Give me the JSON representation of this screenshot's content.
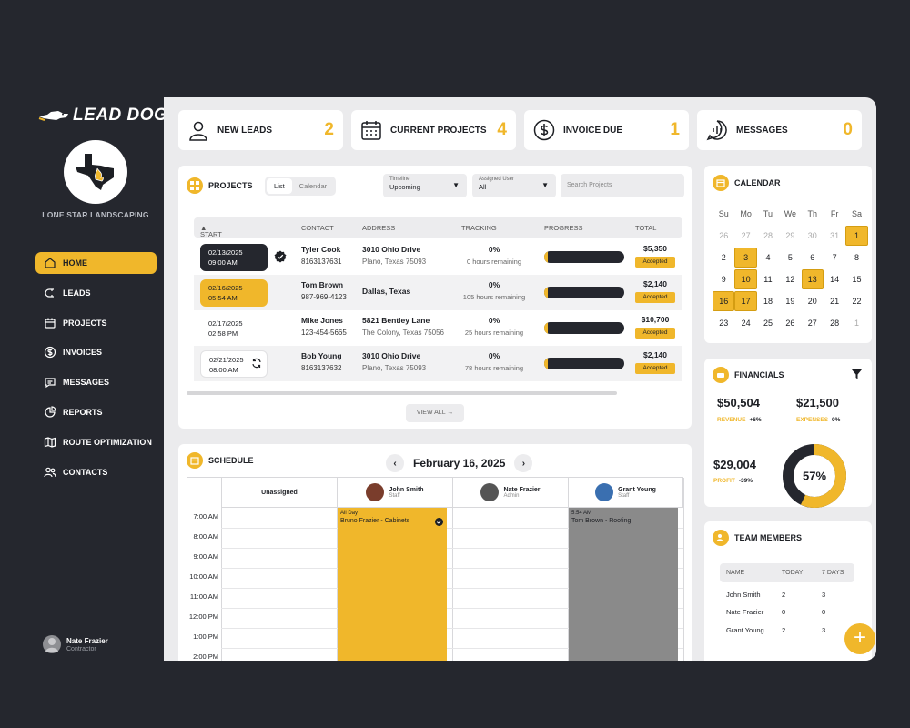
{
  "brand": {
    "logo_text": "LEAD DOG",
    "company": "LONE STAR LANDSCAPING"
  },
  "nav": [
    {
      "label": "HOME",
      "icon": "home-icon",
      "active": true
    },
    {
      "label": "LEADS",
      "icon": "magnet-icon"
    },
    {
      "label": "PROJECTS",
      "icon": "calendar-icon"
    },
    {
      "label": "INVOICES",
      "icon": "dollar-icon"
    },
    {
      "label": "MESSAGES",
      "icon": "chat-icon"
    },
    {
      "label": "REPORTS",
      "icon": "pie-chart-icon"
    },
    {
      "label": "ROUTE OPTIMIZATION",
      "icon": "map-icon"
    },
    {
      "label": "CONTACTS",
      "icon": "users-icon"
    }
  ],
  "user": {
    "name": "Nate Frazier",
    "role": "Contractor"
  },
  "stats": [
    {
      "label": "NEW LEADS",
      "value": "2",
      "icon": "user-icon"
    },
    {
      "label": "CURRENT PROJECTS",
      "value": "4",
      "icon": "calendar-icon"
    },
    {
      "label": "INVOICE DUE",
      "value": "1",
      "icon": "dollar-icon"
    },
    {
      "label": "MESSAGES",
      "value": "0",
      "icon": "chat-icon"
    }
  ],
  "projects": {
    "title": "PROJECTS",
    "toggle": [
      "List",
      "Calendar"
    ],
    "timeline": {
      "label": "Timeline",
      "value": "Upcoming"
    },
    "assigned": {
      "label": "Assigned User",
      "value": "All"
    },
    "search_placeholder": "Search Projects",
    "columns": [
      "START",
      "CONTACT",
      "ADDRESS",
      "TRACKING",
      "PROGRESS",
      "TOTAL"
    ],
    "rows": [
      {
        "date": "02/13/2025",
        "time": "09:00 AM",
        "name": "Tyler Cook",
        "phone": "8163137631",
        "addr1": "3010 Ohio Drive",
        "addr2": "Plano, Texas 75093",
        "pct": "0%",
        "hours": "0 hours remaining",
        "total": "$5,350",
        "status": "Accepted"
      },
      {
        "date": "02/16/2025",
        "time": "05:54 AM",
        "name": "Tom Brown",
        "phone": "987-969-4123",
        "addr1": "Dallas, Texas",
        "addr2": "",
        "pct": "0%",
        "hours": "105 hours remaining",
        "total": "$2,140",
        "status": "Accepted"
      },
      {
        "date": "02/17/2025",
        "time": "02:58 PM",
        "name": "Mike Jones",
        "phone": "123-454-5665",
        "addr1": "5821 Bentley Lane",
        "addr2": "The Colony, Texas 75056",
        "pct": "0%",
        "hours": "25 hours remaining",
        "total": "$10,700",
        "status": "Accepted"
      },
      {
        "date": "02/21/2025",
        "time": "08:00 AM",
        "name": "Bob Young",
        "phone": "8163137632",
        "addr1": "3010 Ohio Drive",
        "addr2": "Plano, Texas 75093",
        "pct": "0%",
        "hours": "78 hours remaining",
        "total": "$2,140",
        "status": "Accepted"
      }
    ],
    "view_all": "VIEW ALL"
  },
  "schedule": {
    "title": "SCHEDULE",
    "date": "February 16, 2025",
    "columns": [
      {
        "name": "Unassigned",
        "role": ""
      },
      {
        "name": "John Smith",
        "role": "Staff"
      },
      {
        "name": "Nate Frazier",
        "role": "Admin"
      },
      {
        "name": "Grant Young",
        "role": "Staff"
      }
    ],
    "times": [
      "7:00 AM",
      "8:00 AM",
      "9:00 AM",
      "10:00 AM",
      "11:00 AM",
      "12:00 PM",
      "1:00 PM",
      "2:00 PM"
    ],
    "events": [
      {
        "time": "All Day",
        "title": "Bruno Frazier - Cabinets"
      },
      {
        "time": "5:54 AM",
        "title": "Tom Brown - Roofing"
      }
    ]
  },
  "calendar": {
    "title": "CALENDAR",
    "weekdays": [
      "Su",
      "Mo",
      "Tu",
      "We",
      "Th",
      "Fr",
      "Sa"
    ],
    "weeks": [
      [
        "26",
        "27",
        "28",
        "29",
        "30",
        "31",
        "1"
      ],
      [
        "2",
        "3",
        "4",
        "5",
        "6",
        "7",
        "8"
      ],
      [
        "9",
        "10",
        "11",
        "12",
        "13",
        "14",
        "15"
      ],
      [
        "16",
        "17",
        "18",
        "19",
        "20",
        "21",
        "22"
      ],
      [
        "23",
        "24",
        "25",
        "26",
        "27",
        "28",
        "1"
      ]
    ],
    "highlighted": [
      "0-6",
      "1-1",
      "2-1",
      "2-4",
      "3-0",
      "3-1"
    ],
    "dim": [
      "0-0",
      "0-1",
      "0-2",
      "0-3",
      "0-4",
      "0-5",
      "4-6"
    ]
  },
  "financials": {
    "title": "FINANCIALS",
    "revenue": {
      "value": "$50,504",
      "label": "REVENUE",
      "change": "+6%"
    },
    "expenses": {
      "value": "$21,500",
      "label": "EXPENSES",
      "change": "0%"
    },
    "profit": {
      "value": "$29,004",
      "label": "PROFIT",
      "change": "-39%"
    },
    "ring_pct": "57%",
    "ring_value": 0.57
  },
  "team": {
    "title": "TEAM MEMBERS",
    "columns": [
      "NAME",
      "TODAY",
      "7 DAYS"
    ],
    "rows": [
      [
        "John Smith",
        "2",
        "3"
      ],
      [
        "Nate Frazier",
        "0",
        "0"
      ],
      [
        "Grant Young",
        "2",
        "3"
      ]
    ]
  },
  "colors": {
    "accent": "#f0b72b",
    "dark": "#25272e"
  }
}
